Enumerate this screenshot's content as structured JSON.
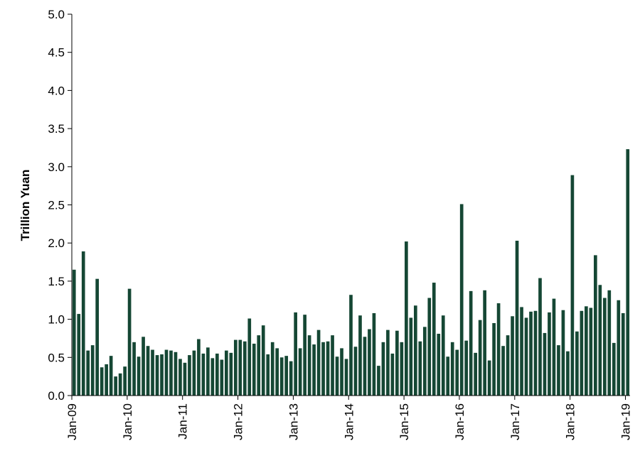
{
  "chart_data": {
    "type": "bar",
    "ylabel": "Trillion Yuan",
    "xlabel": "",
    "ylim": [
      0,
      5.0
    ],
    "y_ticks": [
      "0.0",
      "0.5",
      "1.0",
      "1.5",
      "2.0",
      "2.5",
      "3.0",
      "3.5",
      "4.0",
      "4.5",
      "5.0"
    ],
    "x_tick_labels": [
      "Jan-09",
      "Jan-10",
      "Jan-11",
      "Jan-12",
      "Jan-13",
      "Jan-14",
      "Jan-15",
      "Jan-16",
      "Jan-17",
      "Jan-18",
      "Jan-19"
    ],
    "grid": false,
    "bar_color": "#154734",
    "categories": [
      "2009-01",
      "2009-02",
      "2009-03",
      "2009-04",
      "2009-05",
      "2009-06",
      "2009-07",
      "2009-08",
      "2009-09",
      "2009-10",
      "2009-11",
      "2009-12",
      "2010-01",
      "2010-02",
      "2010-03",
      "2010-04",
      "2010-05",
      "2010-06",
      "2010-07",
      "2010-08",
      "2010-09",
      "2010-10",
      "2010-11",
      "2010-12",
      "2011-01",
      "2011-02",
      "2011-03",
      "2011-04",
      "2011-05",
      "2011-06",
      "2011-07",
      "2011-08",
      "2011-09",
      "2011-10",
      "2011-11",
      "2011-12",
      "2012-01",
      "2012-02",
      "2012-03",
      "2012-04",
      "2012-05",
      "2012-06",
      "2012-07",
      "2012-08",
      "2012-09",
      "2012-10",
      "2012-11",
      "2012-12",
      "2013-01",
      "2013-02",
      "2013-03",
      "2013-04",
      "2013-05",
      "2013-06",
      "2013-07",
      "2013-08",
      "2013-09",
      "2013-10",
      "2013-11",
      "2013-12",
      "2014-01",
      "2014-02",
      "2014-03",
      "2014-04",
      "2014-05",
      "2014-06",
      "2014-07",
      "2014-08",
      "2014-09",
      "2014-10",
      "2014-11",
      "2014-12",
      "2015-01",
      "2015-02",
      "2015-03",
      "2015-04",
      "2015-05",
      "2015-06",
      "2015-07",
      "2015-08",
      "2015-09",
      "2015-10",
      "2015-11",
      "2015-12",
      "2016-01",
      "2016-02",
      "2016-03",
      "2016-04",
      "2016-05",
      "2016-06",
      "2016-07",
      "2016-08",
      "2016-09",
      "2016-10",
      "2016-11",
      "2016-12",
      "2017-01",
      "2017-02",
      "2017-03",
      "2017-04",
      "2017-05",
      "2017-06",
      "2017-07",
      "2017-08",
      "2017-09",
      "2017-10",
      "2017-11",
      "2017-12",
      "2018-01",
      "2018-02",
      "2018-03",
      "2018-04",
      "2018-05",
      "2018-06",
      "2018-07",
      "2018-08",
      "2018-09",
      "2018-10",
      "2018-11",
      "2018-12",
      "2019-01"
    ],
    "values": [
      1.65,
      1.07,
      1.89,
      0.59,
      0.66,
      1.53,
      0.37,
      0.41,
      0.52,
      0.25,
      0.29,
      0.38,
      1.4,
      0.7,
      0.51,
      0.77,
      0.65,
      0.6,
      0.53,
      0.54,
      0.6,
      0.59,
      0.57,
      0.48,
      0.43,
      0.53,
      0.59,
      0.74,
      0.55,
      0.63,
      0.49,
      0.55,
      0.47,
      0.59,
      0.56,
      0.73,
      0.73,
      0.71,
      1.01,
      0.68,
      0.79,
      0.92,
      0.54,
      0.7,
      0.62,
      0.5,
      0.52,
      0.45,
      1.09,
      0.62,
      1.06,
      0.79,
      0.67,
      0.86,
      0.7,
      0.71,
      0.79,
      0.51,
      0.62,
      0.48,
      1.32,
      0.64,
      1.05,
      0.77,
      0.87,
      1.08,
      0.39,
      0.7,
      0.86,
      0.55,
      0.85,
      0.7,
      2.02,
      1.02,
      1.18,
      0.71,
      0.9,
      1.28,
      1.48,
      0.81,
      1.05,
      0.51,
      0.7,
      0.6,
      2.51,
      0.72,
      1.37,
      0.56,
      0.99,
      1.38,
      0.46,
      0.95,
      1.21,
      0.65,
      0.79,
      1.04,
      2.03,
      1.16,
      1.02,
      1.1,
      1.11,
      1.54,
      0.82,
      1.09,
      1.27,
      0.66,
      1.12,
      0.58,
      2.89,
      0.84,
      1.11,
      1.17,
      1.15,
      1.84,
      1.45,
      1.28,
      1.38,
      0.69,
      1.25,
      1.08,
      3.23
    ]
  }
}
